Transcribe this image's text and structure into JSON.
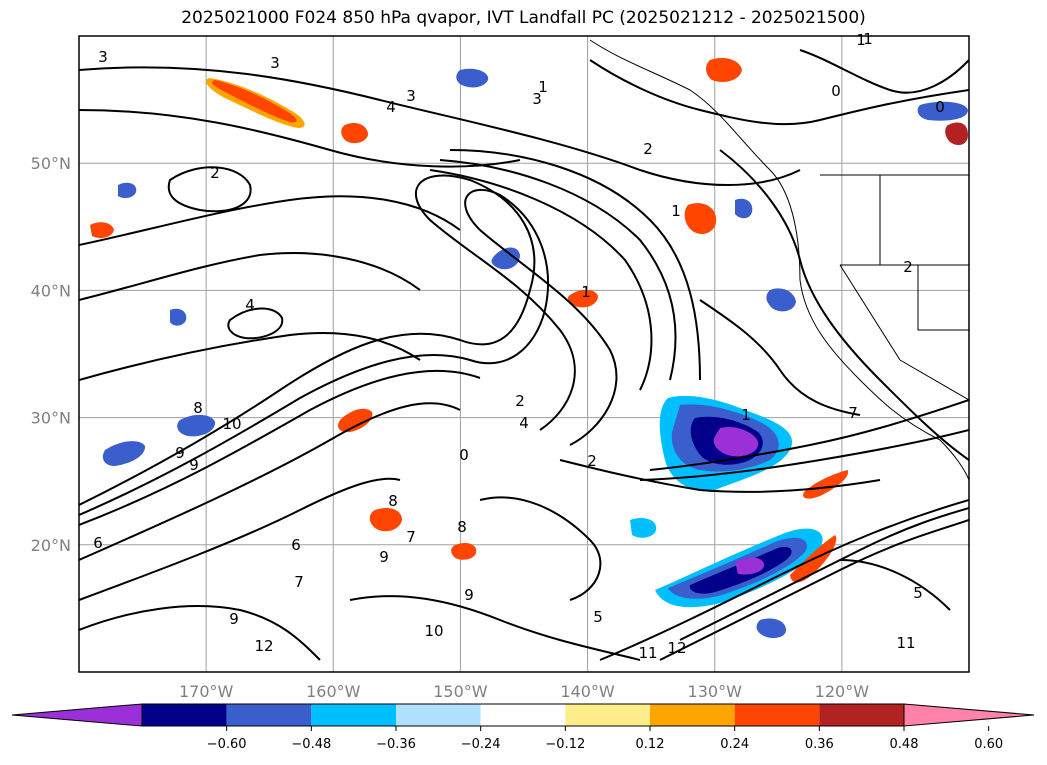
{
  "title": "2025021000 F024 850 hPa qvapor, IVT Landfall PC (2025021212 - 2025021500)",
  "map": {
    "lon_range": [
      -180,
      -110
    ],
    "lat_range": [
      10,
      60
    ],
    "lat_labels": [
      {
        "lat": 50,
        "text": "50°N"
      },
      {
        "lat": 40,
        "text": "40°N"
      },
      {
        "lat": 30,
        "text": "30°N"
      },
      {
        "lat": 20,
        "text": "20°N"
      }
    ],
    "lon_labels": [
      {
        "lon": -170,
        "text": "170°W"
      },
      {
        "lon": -160,
        "text": "160°W"
      },
      {
        "lon": -150,
        "text": "150°W"
      },
      {
        "lon": -140,
        "text": "140°W"
      },
      {
        "lon": -130,
        "text": "130°W"
      },
      {
        "lon": -120,
        "text": "120°W"
      }
    ],
    "contour_labels": [
      "3",
      "3",
      "4",
      "3",
      "1",
      "3",
      "2",
      "2",
      "1",
      "4",
      "1",
      "0",
      "0",
      "1",
      "2",
      "2",
      "4",
      "2",
      "1",
      "7",
      "0",
      "8",
      "10",
      "9",
      "9",
      "8",
      "7",
      "6",
      "8",
      "9",
      "9",
      "1",
      "12",
      "11",
      "5",
      "10",
      "12",
      "9",
      "11",
      "5",
      "6",
      "7"
    ]
  },
  "colorbar": {
    "colors": [
      "#9b30d9",
      "#00008b",
      "#3a5fcd",
      "#00bfff",
      "#b0e2ff",
      "#ffffff",
      "#ffec8b",
      "#ffa500",
      "#ff4500",
      "#b22222",
      "#ff82ab"
    ],
    "boundaries": [
      "−0.60",
      "−0.48",
      "−0.36",
      "−0.24",
      "−0.12",
      "0.12",
      "0.24",
      "0.36",
      "0.48",
      "0.60"
    ]
  }
}
